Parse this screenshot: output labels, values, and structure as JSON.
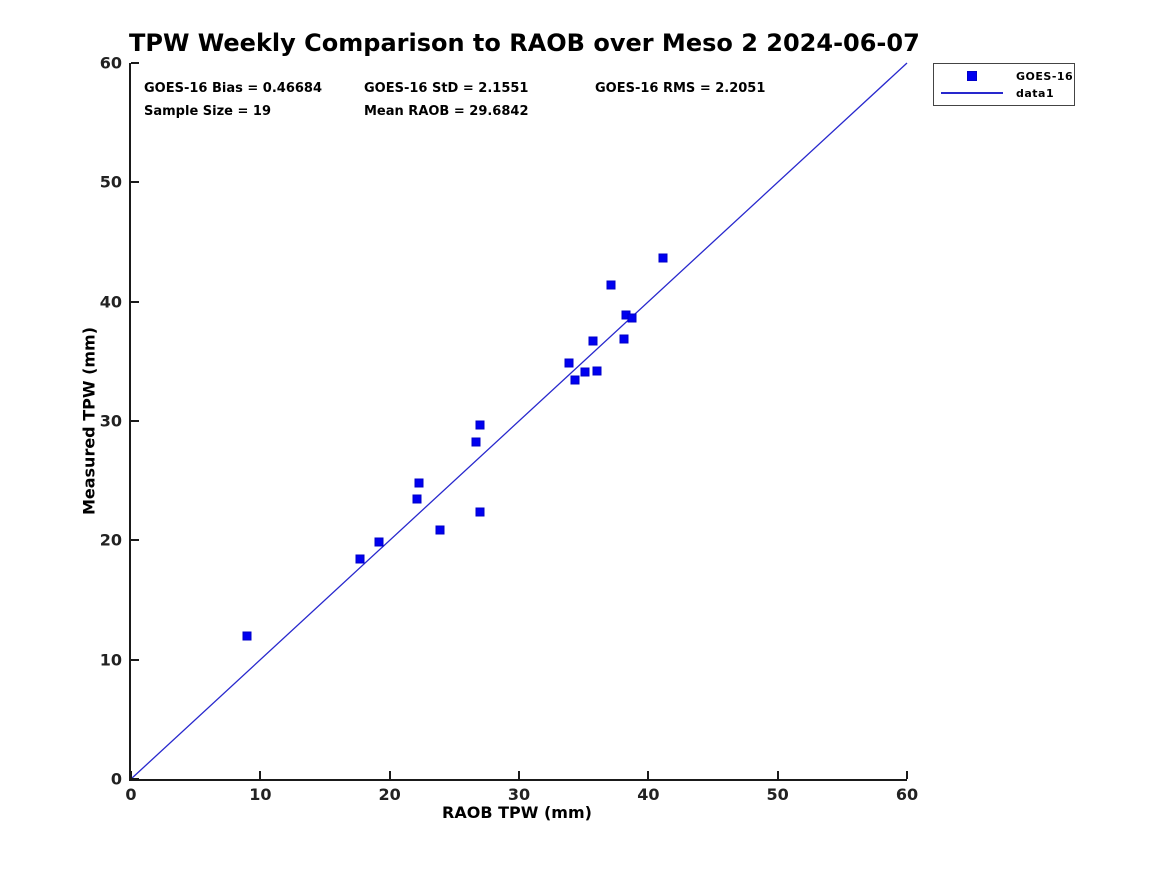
{
  "title": "TPW Weekly Comparison to RAOB over Meso 2 2024-06-07",
  "stats": {
    "bias": "GOES-16 Bias = 0.46684",
    "std": "GOES-16 StD = 2.1551",
    "rms": "GOES-16 RMS = 2.2051",
    "sample_size": "Sample Size = 19",
    "mean_raob": "Mean RAOB = 29.6842"
  },
  "legend": {
    "entries": [
      {
        "label": "GOES-16",
        "symbol": "square-marker"
      },
      {
        "label": "data1",
        "symbol": "line"
      }
    ]
  },
  "colors": {
    "marker_fill": "#0000f0",
    "marker_edge": "#0000c8",
    "line": "#2828cd",
    "axis": "#1a1a1a"
  },
  "chart_data": {
    "type": "scatter",
    "title": "TPW Weekly Comparison to RAOB over Meso 2 2024-06-07",
    "xlabel": "RAOB TPW (mm)",
    "ylabel": "Measured TPW (mm)",
    "xlim": [
      0,
      60
    ],
    "ylim": [
      0,
      60
    ],
    "xticks": [
      0,
      10,
      20,
      30,
      40,
      50,
      60
    ],
    "yticks": [
      0,
      10,
      20,
      30,
      40,
      50,
      60
    ],
    "grid": false,
    "legend_position": "outside-top-right",
    "annotations": [
      "GOES-16 Bias = 0.46684",
      "GOES-16 StD = 2.1551",
      "GOES-16 RMS = 2.2051",
      "Sample Size = 19",
      "Mean RAOB = 29.6842"
    ],
    "series": [
      {
        "name": "GOES-16",
        "type": "scatter",
        "marker": "square",
        "points": [
          [
            9.0,
            12.0
          ],
          [
            17.7,
            18.4
          ],
          [
            19.2,
            19.9
          ],
          [
            22.1,
            23.5
          ],
          [
            22.3,
            24.8
          ],
          [
            23.9,
            20.9
          ],
          [
            26.7,
            28.2
          ],
          [
            27.0,
            29.7
          ],
          [
            27.0,
            22.4
          ],
          [
            33.9,
            34.9
          ],
          [
            34.3,
            33.4
          ],
          [
            35.1,
            34.1
          ],
          [
            36.0,
            34.2
          ],
          [
            35.7,
            36.7
          ],
          [
            37.1,
            41.4
          ],
          [
            38.1,
            36.9
          ],
          [
            38.3,
            38.9
          ],
          [
            38.7,
            38.6
          ],
          [
            41.1,
            43.7
          ]
        ]
      },
      {
        "name": "data1",
        "type": "line",
        "points": [
          [
            0,
            0
          ],
          [
            60,
            60
          ]
        ]
      }
    ]
  }
}
